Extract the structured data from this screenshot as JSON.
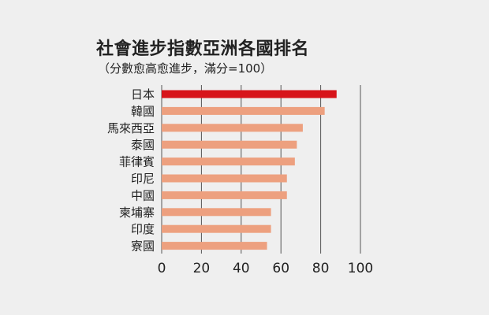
{
  "chart_data": {
    "type": "bar",
    "orientation": "horizontal",
    "title": "社會進步指數亞洲各國排名",
    "subtitle": "（分數愈高愈進步，滿分=100）",
    "categories": [
      "日本",
      "韓國",
      "馬來西亞",
      "泰國",
      "菲律賓",
      "印尼",
      "中國",
      "柬埔寨",
      "印度",
      "寮國"
    ],
    "values": [
      88,
      82,
      71,
      68,
      67,
      63,
      63,
      55,
      55,
      53
    ],
    "xlim": [
      0,
      100
    ],
    "xticks": [
      "0",
      "20",
      "40",
      "60",
      "80",
      "100"
    ],
    "grid": true,
    "colors": {
      "highlight": "#d7141a",
      "bar": "#eda07f",
      "grid": "#555555"
    }
  }
}
